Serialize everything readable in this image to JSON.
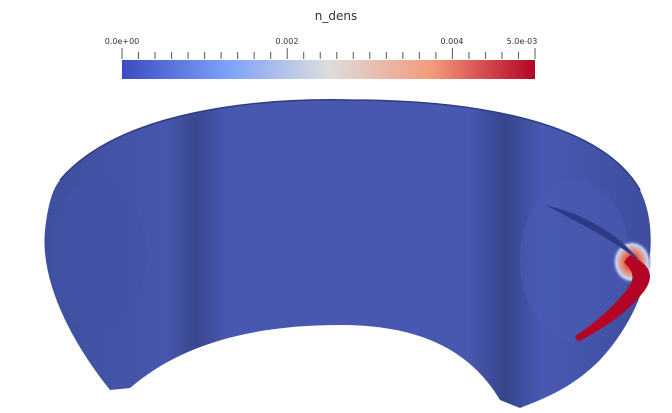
{
  "colorbar": {
    "title": "n_dens",
    "labels": [
      "0.0e+00",
      "0.002",
      "0.004",
      "5.0e-03"
    ]
  }
}
